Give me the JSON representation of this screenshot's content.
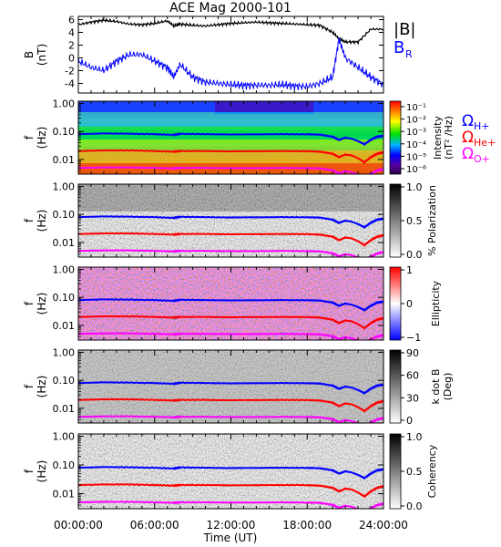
{
  "title": "ACE Mag 2000-101",
  "time_axis": {
    "label": "Time (UT)",
    "ticks": [
      "00:00:00",
      "06:00:00",
      "12:00:00",
      "18:00:00",
      "24:00:00"
    ],
    "range_hours": [
      0,
      24
    ]
  },
  "freq_axis": {
    "label_line1": "f",
    "label_line2": "(Hz)",
    "scale": "log",
    "range_hz": [
      0.003,
      1.2
    ],
    "ticks": [
      "1.00",
      "0.10",
      "0.01"
    ]
  },
  "colors": {
    "proton": "#0000ff",
    "helium": "#ff0000",
    "oxygen": "#ff00ff",
    "btotal": "#000000",
    "bradial": "#0000ff"
  },
  "chart_data": [
    {
      "type": "line",
      "panel": "magnetic_field",
      "ylabel_line1": "B",
      "ylabel_line2": "(nT)",
      "ylim": [
        -5.5,
        6.5
      ],
      "yticks": [
        "6",
        "4",
        "2",
        "0",
        "-2",
        "-4"
      ],
      "legend": [
        "|B|",
        "B",
        "R"
      ],
      "x_hours": [
        0,
        1,
        2,
        3,
        4,
        5,
        6,
        7,
        7.5,
        8,
        9,
        10,
        11,
        12,
        13,
        14,
        15,
        16,
        17,
        18,
        19,
        20,
        20.5,
        21,
        22,
        23,
        24
      ],
      "series": [
        {
          "values": [
            5.2,
            5.6,
            5.9,
            5.7,
            5.3,
            5.2,
            5.4,
            5.8,
            5.0,
            5.3,
            5.1,
            5.0,
            5.2,
            5.4,
            5.5,
            5.6,
            5.5,
            5.4,
            5.3,
            5.2,
            5.1,
            4.0,
            3.0,
            2.5,
            2.5,
            4.5,
            4.5
          ]
        },
        {
          "values": [
            -0.5,
            -1.5,
            -2.0,
            -0.5,
            0.5,
            0.5,
            -0.5,
            -1.5,
            -3.0,
            -1.0,
            -3.0,
            -3.8,
            -4.0,
            -4.2,
            -4.3,
            -4.3,
            -4.3,
            -4.2,
            -4.4,
            -4.5,
            -4.0,
            -3.0,
            3.0,
            0.0,
            -1.5,
            -3.0,
            -4.2
          ]
        }
      ]
    },
    {
      "type": "heatmap",
      "panel": "power_spectrum",
      "colorbar_label_line1": "Intensity",
      "colorbar_label_line2": "(nT² /Hz)",
      "colorbar_ticks": [
        "10⁻¹",
        "10⁻²",
        "10⁻³",
        "10⁻⁴",
        "10⁻⁵",
        "10⁻⁶"
      ],
      "legend": [
        "Ω",
        "H+",
        "Ω",
        "He+",
        "Ω",
        "O+"
      ]
    },
    {
      "type": "heatmap",
      "panel": "polarization",
      "colorbar_label": "% Polarization",
      "colorbar_ticks": [
        "1.0",
        "0.5",
        "0.0"
      ]
    },
    {
      "type": "heatmap",
      "panel": "ellipticity",
      "colorbar_label": "Ellipticity",
      "colorbar_ticks": [
        "1",
        "0",
        "−1"
      ]
    },
    {
      "type": "heatmap",
      "panel": "wave_normal_angle",
      "colorbar_label_line1": "k dot B",
      "colorbar_label_line2": "(Deg)",
      "colorbar_ticks": [
        "90",
        "60",
        "30",
        "0"
      ]
    },
    {
      "type": "heatmap",
      "panel": "coherency",
      "colorbar_label": "Coherency",
      "colorbar_ticks": [
        "1.0",
        "0.5",
        "0.0"
      ]
    }
  ],
  "gyrofrequency_lines": {
    "x_hours": [
      0,
      2,
      4,
      6,
      7.5,
      8,
      10,
      12,
      14,
      16,
      18,
      19,
      20,
      20.5,
      21,
      21.5,
      22,
      22.5,
      23,
      23.5,
      24
    ],
    "proton_hz": [
      0.08,
      0.085,
      0.083,
      0.08,
      0.075,
      0.082,
      0.08,
      0.078,
      0.079,
      0.08,
      0.079,
      0.077,
      0.065,
      0.05,
      0.06,
      0.055,
      0.045,
      0.035,
      0.05,
      0.065,
      0.07
    ],
    "helium_hz": [
      0.02,
      0.021,
      0.021,
      0.02,
      0.019,
      0.02,
      0.02,
      0.0195,
      0.0198,
      0.02,
      0.0198,
      0.019,
      0.016,
      0.012,
      0.015,
      0.014,
      0.011,
      0.008,
      0.012,
      0.016,
      0.018
    ],
    "oxygen_hz": [
      0.005,
      0.0052,
      0.0052,
      0.005,
      0.0048,
      0.005,
      0.005,
      0.0049,
      0.0049,
      0.005,
      0.0049,
      0.0048,
      0.0041,
      0.0032,
      0.0038,
      0.0035,
      0.0029,
      0.0024,
      0.0031,
      0.004,
      0.0045
    ]
  }
}
